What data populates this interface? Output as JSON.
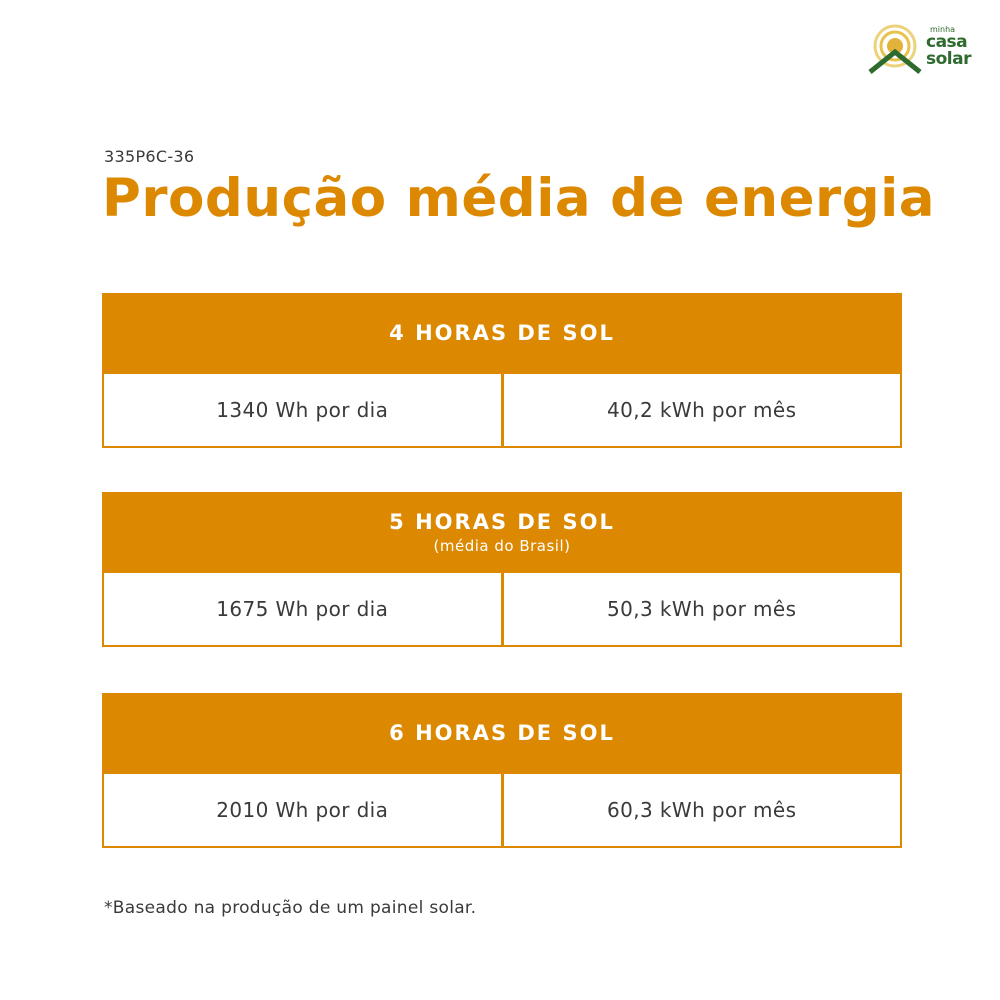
{
  "logo": {
    "line1": "minha",
    "line2": "casa",
    "line3": "solar",
    "color": "#2f6b2f",
    "sun_color": "#e8c24a"
  },
  "model": "335P6C-36",
  "title": "Produção média de energia",
  "accent_color": "#dc8800",
  "blocks": [
    {
      "title": "4 HORAS DE SOL",
      "subtitle": "",
      "daily": "1340 Wh por dia",
      "monthly": "40,2 kWh por mês"
    },
    {
      "title": "5 HORAS DE SOL",
      "subtitle": "(média do Brasil)",
      "daily": "1675 Wh por dia",
      "monthly": "50,3 kWh por mês"
    },
    {
      "title": "6 HORAS DE SOL",
      "subtitle": "",
      "daily": "2010 Wh por dia",
      "monthly": "60,3 kWh por mês"
    }
  ],
  "footnote": "*Baseado na produção de um painel solar."
}
